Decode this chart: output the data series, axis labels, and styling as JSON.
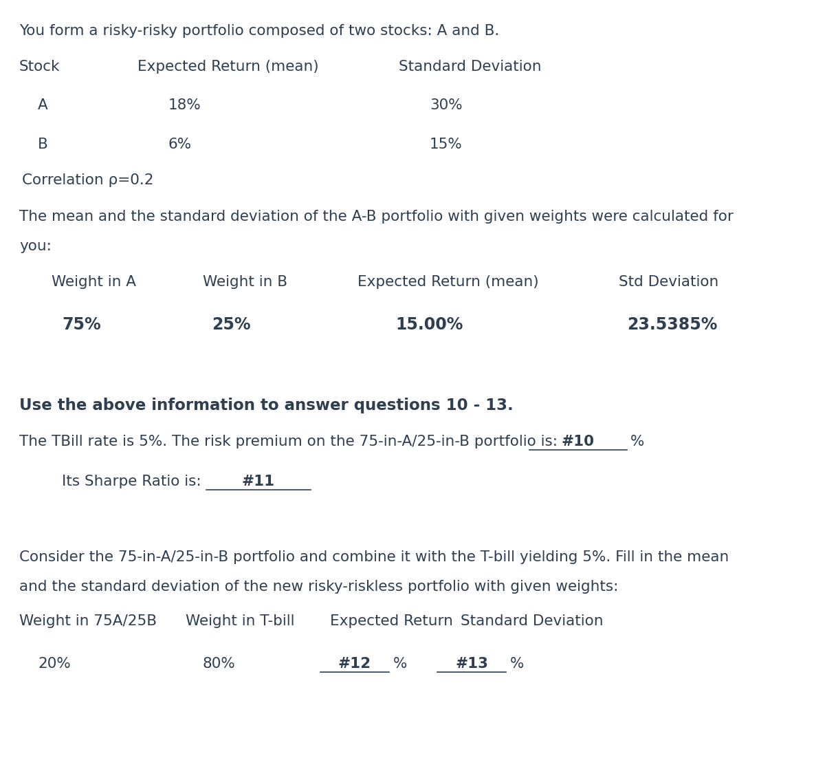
{
  "bg_color": "#ffffff",
  "text_color": "#2e3f52",
  "title_line": "You form a risky-risky portfolio composed of two stocks: A and B.",
  "table1_headers": [
    "Stock",
    "Expected Return (mean)",
    "Standard Deviation"
  ],
  "table1_rows": [
    [
      "A",
      "18%",
      "30%"
    ],
    [
      "B",
      "6%",
      "15%"
    ]
  ],
  "correlation_line": "Correlation ρ=0.2",
  "para1_line1": "The mean and the standard deviation of the A-B portfolio with given weights were calculated for",
  "para1_line2": "you:",
  "table2_headers": [
    "Weight in A",
    "Weight in B",
    "Expected Return (mean)",
    "Std Deviation"
  ],
  "table2_row": [
    "75%",
    "25%",
    "15.00%",
    "23.5385%"
  ],
  "bold_line": "Use the above information to answer questions 10 - 13.",
  "q10_prefix": "The TBill rate is 5%. The risk premium on the 75-in-A/25-in-B portfolio is:",
  "q10_blank": "#10",
  "q10_suffix": "%",
  "q11_prefix": "Its Sharpe Ratio is:",
  "q11_blank": "#11",
  "para2_line1": "Consider the 75-in-A/25-in-B portfolio and combine it with the T-bill yielding 5%. Fill in the mean",
  "para2_line2": "and the standard deviation of the new risky-riskless portfolio with given weights:",
  "table3_headers": [
    "Weight in 75A/25B",
    "Weight in T-bill",
    "Expected Return",
    "Standard Deviation"
  ],
  "table3_w1": "20%",
  "table3_w2": "80%",
  "table3_b1": "#12",
  "table3_b2": "#13",
  "nfs": 15.5,
  "vfs": 17.0,
  "bfs": 16.5
}
